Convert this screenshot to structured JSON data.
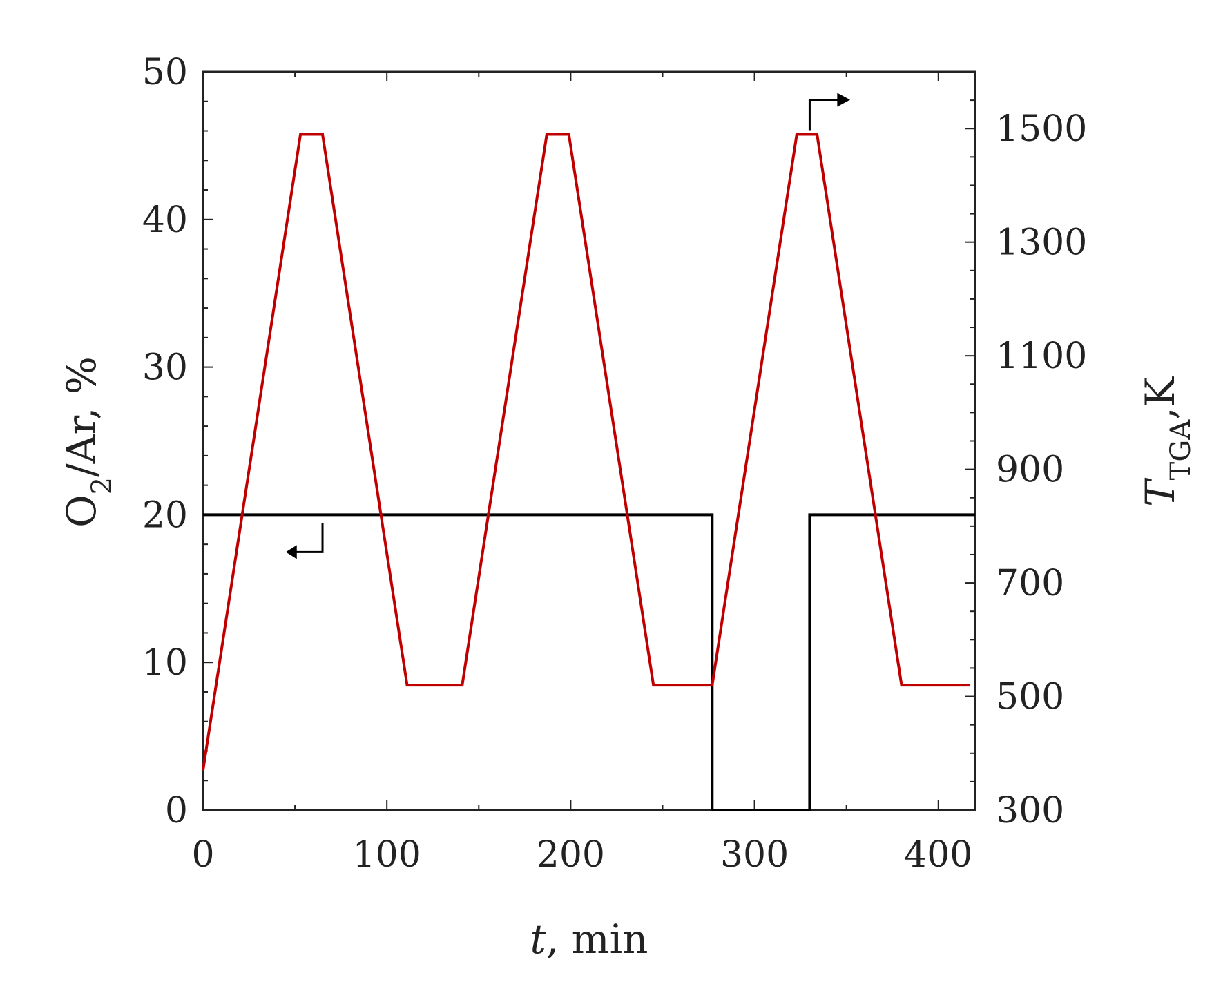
{
  "chart_data": {
    "type": "line",
    "title": "",
    "xlabel": {
      "symbol": "t",
      "rest": ", min"
    },
    "ylabel_left": {
      "main": "O",
      "sub": "2",
      "rest": "/Ar, %"
    },
    "ylabel_right": {
      "symbol": "T",
      "sub": "TGA",
      "rest": ",K"
    },
    "xlim": [
      0,
      420
    ],
    "ylim_left": [
      0,
      50
    ],
    "ylim_right": [
      300,
      1600
    ],
    "x_ticks": [
      0,
      100,
      200,
      300,
      400
    ],
    "y_left_ticks": [
      0,
      10,
      20,
      30,
      40,
      50
    ],
    "y_right_ticks": [
      300,
      500,
      700,
      900,
      1100,
      1300,
      1500
    ],
    "grid": false,
    "legend": "none",
    "series": [
      {
        "axis": "left",
        "color": "#000000",
        "points": [
          [
            0,
            20
          ],
          [
            277,
            20
          ],
          [
            277,
            0
          ],
          [
            330,
            0
          ],
          [
            330,
            20
          ],
          [
            420,
            20
          ]
        ]
      },
      {
        "axis": "right",
        "color": "#c00000",
        "points": [
          [
            0,
            370
          ],
          [
            53,
            1490
          ],
          [
            65,
            1490
          ],
          [
            111,
            520
          ],
          [
            141,
            520
          ],
          [
            187,
            1490
          ],
          [
            199,
            1490
          ],
          [
            245,
            520
          ],
          [
            277,
            520
          ],
          [
            323,
            1490
          ],
          [
            334,
            1490
          ],
          [
            380,
            520
          ],
          [
            417,
            520
          ]
        ]
      }
    ]
  }
}
